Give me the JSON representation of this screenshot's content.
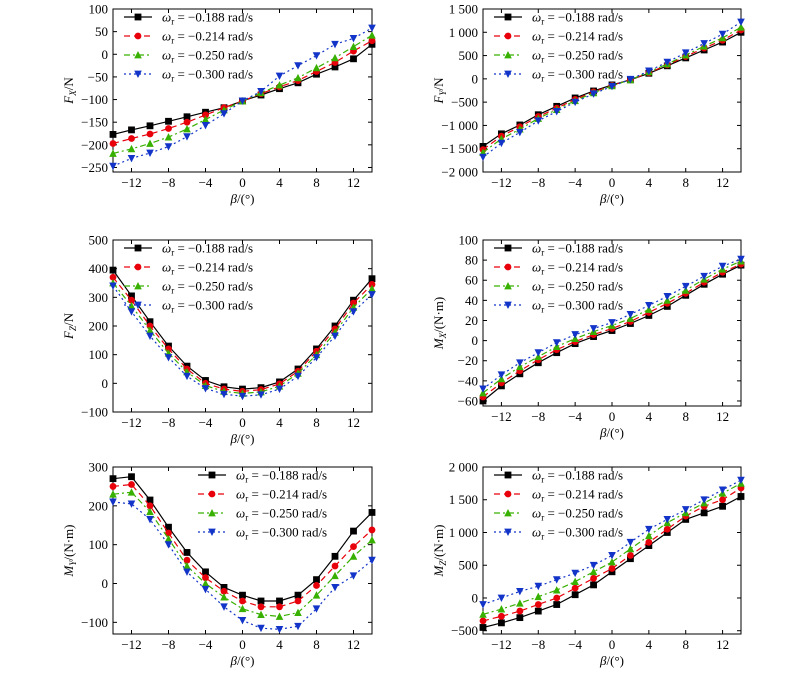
{
  "legend_entries": [
    "ω_r = −0.188 rad/s",
    "ω_r = −0.214 rad/s",
    "ω_r = −0.250 rad/s",
    "ω_r = −0.300 rad/s"
  ],
  "series_style": [
    {
      "color": "#000000",
      "marker": "square",
      "dash": ""
    },
    {
      "color": "#e8000b",
      "marker": "circle",
      "dash": "6,4"
    },
    {
      "color": "#38b000",
      "marker": "triangle-up",
      "dash": "6,3,2,3"
    },
    {
      "color": "#1234c8",
      "marker": "triangle-down",
      "dash": "2,3"
    }
  ],
  "chart_data": [
    {
      "type": "line",
      "ylabel": "F_X/N",
      "xlabel": "β/(°)",
      "xlim": [
        -14,
        14
      ],
      "ylim": [
        -260,
        100
      ],
      "xticks": [
        -12,
        -8,
        -4,
        0,
        4,
        8,
        12
      ],
      "yticks": [
        -250,
        -200,
        -150,
        -100,
        -50,
        0,
        50,
        100
      ],
      "ytick_labels": [
        "−250",
        "−200",
        "−150",
        "−100",
        "−50",
        "0",
        "50",
        "100"
      ],
      "legend": "top-left",
      "x": [
        -14,
        -12,
        -10,
        -8,
        -6,
        -4,
        -2,
        0,
        2,
        4,
        6,
        8,
        10,
        12,
        14
      ],
      "series": [
        {
          "name": "ω_r = −0.188 rad/s",
          "values": [
            -177,
            -167,
            -158,
            -148,
            -138,
            -128,
            -118,
            -103,
            -90,
            -76,
            -63,
            -44,
            -28,
            -10,
            22
          ]
        },
        {
          "name": "ω_r = −0.214 rad/s",
          "values": [
            -197,
            -186,
            -176,
            -164,
            -150,
            -134,
            -118,
            -103,
            -87,
            -72,
            -58,
            -38,
            -18,
            7,
            30
          ]
        },
        {
          "name": "ω_r = −0.250 rad/s",
          "values": [
            -219,
            -209,
            -197,
            -183,
            -165,
            -144,
            -123,
            -103,
            -85,
            -68,
            -52,
            -30,
            -8,
            17,
            42
          ]
        },
        {
          "name": "ω_r = −0.300 rad/s",
          "values": [
            -247,
            -230,
            -218,
            -204,
            -182,
            -157,
            -131,
            -103,
            -82,
            -48,
            -25,
            -3,
            22,
            35,
            58
          ]
        }
      ]
    },
    {
      "type": "line",
      "ylabel": "F_Y/N",
      "xlabel": "β/(°)",
      "xlim": [
        -14,
        14
      ],
      "ylim": [
        -2000,
        1500
      ],
      "xticks": [
        -12,
        -8,
        -4,
        0,
        4,
        8,
        12
      ],
      "yticks": [
        -2000,
        -1500,
        -1000,
        -500,
        0,
        500,
        1000,
        1500
      ],
      "ytick_labels": [
        "−2 000",
        "−1 500",
        "−1 000",
        "−500",
        "0",
        "500",
        "1 000",
        "1 500"
      ],
      "legend": "top-left",
      "x": [
        -14,
        -12,
        -10,
        -8,
        -6,
        -4,
        -2,
        0,
        2,
        4,
        6,
        8,
        10,
        12,
        14
      ],
      "series": [
        {
          "name": "ω_r = −0.188 rad/s",
          "values": [
            -1450,
            -1180,
            -990,
            -770,
            -590,
            -410,
            -260,
            -130,
            -20,
            120,
            280,
            450,
            620,
            790,
            1000
          ]
        },
        {
          "name": "ω_r = −0.214 rad/s",
          "values": [
            -1520,
            -1230,
            -1030,
            -810,
            -630,
            -440,
            -280,
            -140,
            -20,
            130,
            300,
            480,
            660,
            830,
            1050
          ]
        },
        {
          "name": "ω_r = −0.250 rad/s",
          "values": [
            -1580,
            -1290,
            -1080,
            -850,
            -660,
            -470,
            -300,
            -150,
            -20,
            150,
            320,
            510,
            700,
            880,
            1110
          ]
        },
        {
          "name": "ω_r = −0.300 rad/s",
          "values": [
            -1680,
            -1380,
            -1150,
            -900,
            -700,
            -500,
            -320,
            -160,
            -10,
            170,
            360,
            560,
            760,
            960,
            1220
          ]
        }
      ]
    },
    {
      "type": "line",
      "ylabel": "F_Z/N",
      "xlabel": "β/(°)",
      "xlim": [
        -14,
        14
      ],
      "ylim": [
        -100,
        500
      ],
      "xticks": [
        -12,
        -8,
        -4,
        0,
        4,
        8,
        12
      ],
      "yticks": [
        -100,
        0,
        100,
        200,
        300,
        400,
        500
      ],
      "ytick_labels": [
        "−100",
        "0",
        "100",
        "200",
        "300",
        "400",
        "500"
      ],
      "legend": "top-left",
      "x": [
        -14,
        -12,
        -10,
        -8,
        -6,
        -4,
        -2,
        0,
        2,
        4,
        6,
        8,
        10,
        12,
        14
      ],
      "series": [
        {
          "name": "ω_r = −0.188 rad/s",
          "values": [
            395,
            305,
            215,
            130,
            60,
            10,
            -12,
            -20,
            -15,
            5,
            50,
            120,
            200,
            290,
            365
          ]
        },
        {
          "name": "ω_r = −0.214 rad/s",
          "values": [
            370,
            290,
            200,
            120,
            50,
            0,
            -20,
            -28,
            -22,
            -2,
            42,
            112,
            190,
            280,
            345
          ]
        },
        {
          "name": "ω_r = −0.250 rad/s",
          "values": [
            350,
            270,
            185,
            105,
            40,
            -8,
            -28,
            -35,
            -30,
            -10,
            35,
            100,
            178,
            265,
            330
          ]
        },
        {
          "name": "ω_r = −0.300 rad/s",
          "values": [
            340,
            250,
            165,
            90,
            25,
            -18,
            -38,
            -45,
            -40,
            -20,
            25,
            90,
            165,
            250,
            310
          ]
        }
      ]
    },
    {
      "type": "line",
      "ylabel": "M_X/(N·m)",
      "xlabel": "β/(°)",
      "xlim": [
        -14,
        14
      ],
      "ylim": [
        -65,
        100
      ],
      "xticks": [
        -12,
        -8,
        -4,
        0,
        4,
        8,
        12
      ],
      "yticks": [
        -60,
        -40,
        -20,
        0,
        20,
        40,
        60,
        80,
        100
      ],
      "ytick_labels": [
        "−60",
        "−40",
        "−20",
        "0",
        "20",
        "40",
        "60",
        "80",
        "100"
      ],
      "legend": "top-left",
      "x": [
        -14,
        -12,
        -10,
        -8,
        -6,
        -4,
        -2,
        0,
        2,
        4,
        6,
        8,
        10,
        12,
        14
      ],
      "series": [
        {
          "name": "ω_r = −0.188 rad/s",
          "values": [
            -60,
            -45,
            -33,
            -22,
            -12,
            -3,
            4,
            10,
            17,
            25,
            34,
            45,
            56,
            66,
            75
          ]
        },
        {
          "name": "ω_r = −0.214 rad/s",
          "values": [
            -56,
            -42,
            -30,
            -19,
            -9,
            -1,
            6,
            12,
            19,
            28,
            37,
            47,
            58,
            68,
            76
          ]
        },
        {
          "name": "ω_r = −0.250 rad/s",
          "values": [
            -52,
            -38,
            -26,
            -16,
            -6,
            2,
            9,
            15,
            22,
            31,
            40,
            50,
            61,
            71,
            79
          ]
        },
        {
          "name": "ω_r = −0.300 rad/s",
          "values": [
            -48,
            -34,
            -22,
            -12,
            -2,
            6,
            12,
            18,
            26,
            35,
            44,
            54,
            64,
            74,
            81
          ]
        }
      ]
    },
    {
      "type": "line",
      "ylabel": "M_Y/(N·m)",
      "xlabel": "β/(°)",
      "xlim": [
        -14,
        14
      ],
      "ylim": [
        -130,
        300
      ],
      "xticks": [
        -12,
        -8,
        -4,
        0,
        4,
        8,
        12
      ],
      "yticks": [
        -100,
        0,
        100,
        200,
        300
      ],
      "ytick_labels": [
        "−100",
        "0",
        "100",
        "200",
        "300"
      ],
      "legend": "top-right",
      "x": [
        -14,
        -12,
        -10,
        -8,
        -6,
        -4,
        -2,
        0,
        2,
        4,
        6,
        8,
        10,
        12,
        14
      ],
      "series": [
        {
          "name": "ω_r = −0.188 rad/s",
          "values": [
            270,
            275,
            215,
            145,
            80,
            30,
            -10,
            -30,
            -45,
            -45,
            -30,
            10,
            70,
            135,
            183
          ]
        },
        {
          "name": "ω_r = −0.214 rad/s",
          "values": [
            250,
            255,
            200,
            130,
            60,
            15,
            -20,
            -45,
            -60,
            -60,
            -45,
            -5,
            45,
            95,
            138
          ]
        },
        {
          "name": "ω_r = −0.250 rad/s",
          "values": [
            230,
            235,
            185,
            115,
            45,
            0,
            -35,
            -65,
            -80,
            -85,
            -75,
            -30,
            20,
            70,
            112
          ]
        },
        {
          "name": "ω_r = −0.300 rad/s",
          "values": [
            210,
            205,
            165,
            100,
            30,
            -15,
            -60,
            -95,
            -115,
            -118,
            -110,
            -65,
            -10,
            20,
            60
          ]
        }
      ]
    },
    {
      "type": "line",
      "ylabel": "M_Z/(N·m)",
      "xlabel": "β/(°)",
      "xlim": [
        -14,
        14
      ],
      "ylim": [
        -550,
        2000
      ],
      "xticks": [
        -12,
        -8,
        -4,
        0,
        4,
        8,
        12
      ],
      "yticks": [
        -500,
        0,
        500,
        1000,
        1500,
        2000
      ],
      "ytick_labels": [
        "−500",
        "0",
        "500",
        "1 000",
        "1 500",
        "2 000"
      ],
      "legend": "top-left",
      "x": [
        -14,
        -12,
        -10,
        -8,
        -6,
        -4,
        -2,
        0,
        2,
        4,
        6,
        8,
        10,
        12,
        14
      ],
      "series": [
        {
          "name": "ω_r = −0.188 rad/s",
          "values": [
            -450,
            -380,
            -300,
            -200,
            -100,
            50,
            200,
            400,
            600,
            800,
            1000,
            1200,
            1300,
            1400,
            1550
          ]
        },
        {
          "name": "ω_r = −0.214 rad/s",
          "values": [
            -350,
            -280,
            -200,
            -100,
            0,
            150,
            300,
            450,
            650,
            850,
            1050,
            1250,
            1400,
            1500,
            1680
          ]
        },
        {
          "name": "ω_r = −0.250 rad/s",
          "values": [
            -250,
            -170,
            -80,
            20,
            120,
            250,
            400,
            550,
            750,
            950,
            1150,
            1300,
            1450,
            1600,
            1750
          ]
        },
        {
          "name": "ω_r = −0.300 rad/s",
          "values": [
            -100,
            0,
            100,
            180,
            280,
            380,
            500,
            650,
            850,
            1050,
            1200,
            1350,
            1500,
            1650,
            1800
          ]
        }
      ]
    }
  ]
}
